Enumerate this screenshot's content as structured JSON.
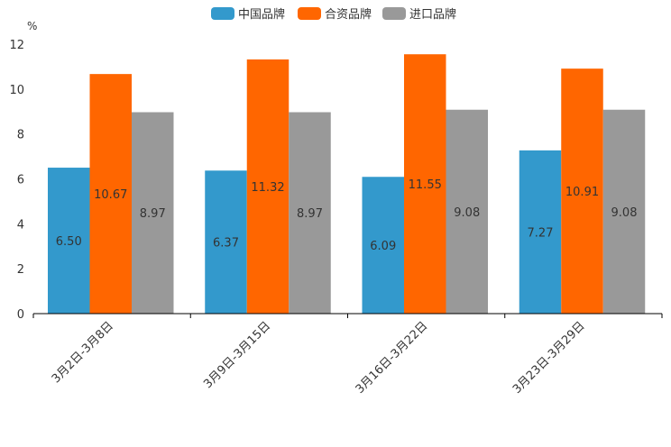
{
  "chart_data": {
    "type": "bar",
    "unit": "%",
    "categories": [
      "3月2日-3月8日",
      "3月9日-3月15日",
      "3月16日-3月22日",
      "3月23日-3月29日"
    ],
    "series": [
      {
        "name": "中国品牌",
        "color": "#3399cc",
        "values": [
          6.5,
          6.37,
          6.09,
          7.27
        ]
      },
      {
        "name": "合资品牌",
        "color": "#ff6600",
        "values": [
          10.67,
          11.32,
          11.55,
          10.91
        ]
      },
      {
        "name": "进口品牌",
        "color": "#999999",
        "values": [
          8.97,
          8.97,
          9.08,
          9.08
        ]
      }
    ],
    "ylim": [
      0,
      12
    ],
    "yticks": [
      0,
      2,
      4,
      6,
      8,
      10,
      12
    ],
    "legend_position": "top-center",
    "value_labels": [
      [
        "6.50",
        "6.37",
        "6.09",
        "7.27"
      ],
      [
        "10.67",
        "11.32",
        "11.55",
        "10.91"
      ],
      [
        "8.97",
        "8.97",
        "9.08",
        "9.08"
      ]
    ]
  }
}
